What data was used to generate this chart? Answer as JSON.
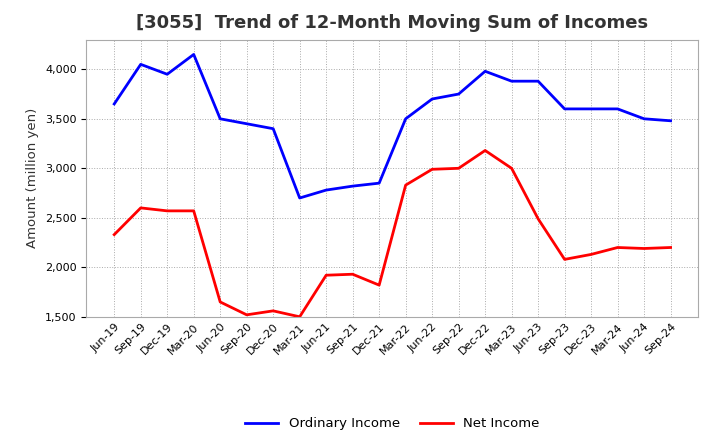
{
  "title": "[3055]  Trend of 12-Month Moving Sum of Incomes",
  "ylabel": "Amount (million yen)",
  "x_labels": [
    "Jun-19",
    "Sep-19",
    "Dec-19",
    "Mar-20",
    "Jun-20",
    "Sep-20",
    "Dec-20",
    "Mar-21",
    "Jun-21",
    "Sep-21",
    "Dec-21",
    "Mar-22",
    "Jun-22",
    "Sep-22",
    "Dec-22",
    "Mar-23",
    "Jun-23",
    "Sep-23",
    "Dec-23",
    "Mar-24",
    "Jun-24",
    "Sep-24"
  ],
  "ordinary_income": [
    3650,
    4050,
    3950,
    4150,
    3500,
    3450,
    3400,
    2700,
    2780,
    2820,
    2850,
    3500,
    3700,
    3750,
    3980,
    3880,
    3880,
    3600,
    3600,
    3600,
    3500,
    3480
  ],
  "net_income": [
    2330,
    2600,
    2570,
    2570,
    1650,
    1520,
    1560,
    1500,
    1920,
    1930,
    1820,
    2830,
    2990,
    3000,
    3180,
    3000,
    2490,
    2080,
    2130,
    2200,
    2190,
    2200
  ],
  "ordinary_color": "#0000ff",
  "net_color": "#ff0000",
  "ylim_min": 1500,
  "ylim_max": 4300,
  "yticks": [
    1500,
    2000,
    2500,
    3000,
    3500,
    4000
  ],
  "line_width": 2.0,
  "bg_color": "#ffffff",
  "grid_color": "#aaaaaa",
  "title_fontsize": 13,
  "axis_fontsize": 9.5,
  "tick_fontsize": 8,
  "legend_fontsize": 9.5
}
